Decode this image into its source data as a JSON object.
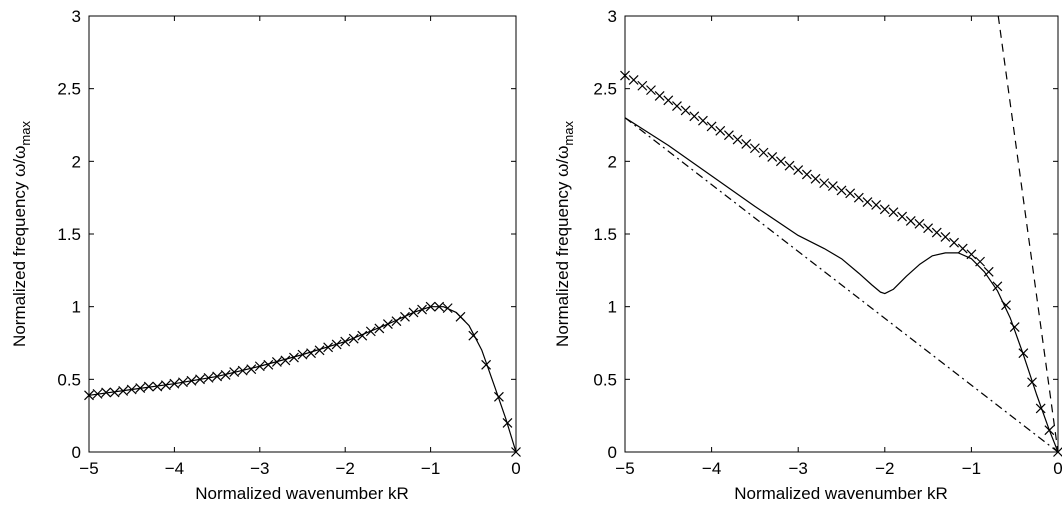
{
  "chart_data": [
    {
      "type": "line",
      "xlabel": "Normalized wavenumber kR",
      "ylabel": {
        "main": "Normalized frequency ω/ω",
        "sub": "max"
      },
      "xlim": [
        -5,
        0
      ],
      "ylim": [
        0,
        3
      ],
      "xticks": [
        -5,
        -4,
        -3,
        -2,
        -1,
        0
      ],
      "yticks": [
        0,
        0.5,
        1,
        1.5,
        2,
        2.5,
        3
      ],
      "xtick_labels": [
        "−5",
        "−4",
        "−3",
        "−2",
        "−1",
        "0"
      ],
      "ytick_labels": [
        "0",
        "0.5",
        "1",
        "1.5",
        "2",
        "2.5",
        "3"
      ],
      "grid": false,
      "series": [
        {
          "style": "solid",
          "x": [
            -5,
            -4.5,
            -4,
            -3.5,
            -3,
            -2.5,
            -2,
            -1.5,
            -1.2,
            -1.0,
            -0.85,
            -0.7,
            -0.55,
            -0.4,
            -0.25,
            -0.12,
            0
          ],
          "y": [
            0.39,
            0.43,
            0.47,
            0.52,
            0.59,
            0.67,
            0.76,
            0.88,
            0.96,
            1.0,
            1.0,
            0.96,
            0.87,
            0.7,
            0.45,
            0.23,
            0
          ]
        },
        {
          "style": "markers-x",
          "x": [
            -5,
            -4.9,
            -4.8,
            -4.7,
            -4.6,
            -4.5,
            -4.4,
            -4.3,
            -4.2,
            -4.1,
            -4.0,
            -3.9,
            -3.8,
            -3.7,
            -3.6,
            -3.5,
            -3.4,
            -3.3,
            -3.2,
            -3.1,
            -3.0,
            -2.9,
            -2.8,
            -2.7,
            -2.6,
            -2.5,
            -2.4,
            -2.3,
            -2.2,
            -2.1,
            -2.0,
            -1.9,
            -1.8,
            -1.7,
            -1.6,
            -1.5,
            -1.4,
            -1.3,
            -1.2,
            -1.1,
            -1.0,
            -0.9,
            -0.8,
            -0.65,
            -0.5,
            -0.35,
            -0.2,
            -0.1,
            0
          ],
          "y": [
            0.39,
            0.4,
            0.41,
            0.41,
            0.42,
            0.43,
            0.44,
            0.45,
            0.45,
            0.46,
            0.47,
            0.48,
            0.49,
            0.5,
            0.51,
            0.52,
            0.53,
            0.55,
            0.56,
            0.57,
            0.59,
            0.6,
            0.62,
            0.63,
            0.65,
            0.67,
            0.68,
            0.7,
            0.72,
            0.74,
            0.76,
            0.78,
            0.8,
            0.83,
            0.85,
            0.88,
            0.9,
            0.93,
            0.96,
            0.98,
            1.0,
            1.0,
            0.99,
            0.93,
            0.8,
            0.6,
            0.38,
            0.2,
            0
          ]
        }
      ]
    },
    {
      "type": "line",
      "xlabel": "Normalized wavenumber kR",
      "ylabel": {
        "main": "Normalized frequency ω/ω",
        "sub": "max"
      },
      "xlim": [
        -5,
        0
      ],
      "ylim": [
        0,
        3
      ],
      "xticks": [
        -5,
        -4,
        -3,
        -2,
        -1,
        0
      ],
      "yticks": [
        0,
        0.5,
        1,
        1.5,
        2,
        2.5,
        3
      ],
      "xtick_labels": [
        "−5",
        "−4",
        "−3",
        "−2",
        "−1",
        "0"
      ],
      "ytick_labels": [
        "0",
        "0.5",
        "1",
        "1.5",
        "2",
        "2.5",
        "3"
      ],
      "grid": false,
      "series": [
        {
          "style": "solid",
          "x": [
            -5,
            -4.5,
            -4,
            -3.5,
            -3,
            -2.7,
            -2.5,
            -2.3,
            -2.15,
            -2.05,
            -2.0,
            -1.9,
            -1.75,
            -1.6,
            -1.45,
            -1.3,
            -1.15,
            -1.0,
            -0.85,
            -0.7,
            -0.55,
            -0.4,
            -0.25,
            -0.1,
            0
          ],
          "y": [
            2.3,
            2.11,
            1.9,
            1.69,
            1.49,
            1.4,
            1.33,
            1.23,
            1.15,
            1.1,
            1.09,
            1.12,
            1.21,
            1.29,
            1.35,
            1.37,
            1.37,
            1.33,
            1.24,
            1.11,
            0.92,
            0.67,
            0.4,
            0.15,
            0
          ]
        },
        {
          "style": "markers-x",
          "x": [
            -5,
            -4.9,
            -4.8,
            -4.7,
            -4.6,
            -4.5,
            -4.4,
            -4.3,
            -4.2,
            -4.1,
            -4.0,
            -3.9,
            -3.8,
            -3.7,
            -3.6,
            -3.5,
            -3.4,
            -3.3,
            -3.2,
            -3.1,
            -3.0,
            -2.9,
            -2.8,
            -2.7,
            -2.6,
            -2.5,
            -2.4,
            -2.3,
            -2.2,
            -2.1,
            -2.0,
            -1.9,
            -1.8,
            -1.7,
            -1.6,
            -1.5,
            -1.4,
            -1.3,
            -1.2,
            -1.1,
            -1.0,
            -0.9,
            -0.8,
            -0.7,
            -0.6,
            -0.5,
            -0.4,
            -0.3,
            -0.2,
            -0.1,
            0
          ],
          "y": [
            2.59,
            2.56,
            2.52,
            2.49,
            2.45,
            2.42,
            2.38,
            2.35,
            2.31,
            2.28,
            2.24,
            2.21,
            2.18,
            2.15,
            2.12,
            2.09,
            2.06,
            2.03,
            2.0,
            1.97,
            1.94,
            1.91,
            1.88,
            1.85,
            1.83,
            1.8,
            1.78,
            1.75,
            1.72,
            1.7,
            1.67,
            1.65,
            1.62,
            1.59,
            1.57,
            1.54,
            1.51,
            1.48,
            1.44,
            1.4,
            1.36,
            1.31,
            1.24,
            1.14,
            1.01,
            0.86,
            0.68,
            0.48,
            0.3,
            0.15,
            0
          ]
        },
        {
          "style": "dashed",
          "x": [
            -0.69,
            0
          ],
          "y": [
            3.0,
            0
          ]
        },
        {
          "style": "dashdot",
          "x": [
            -5,
            0
          ],
          "y": [
            2.3,
            0
          ]
        }
      ]
    }
  ]
}
